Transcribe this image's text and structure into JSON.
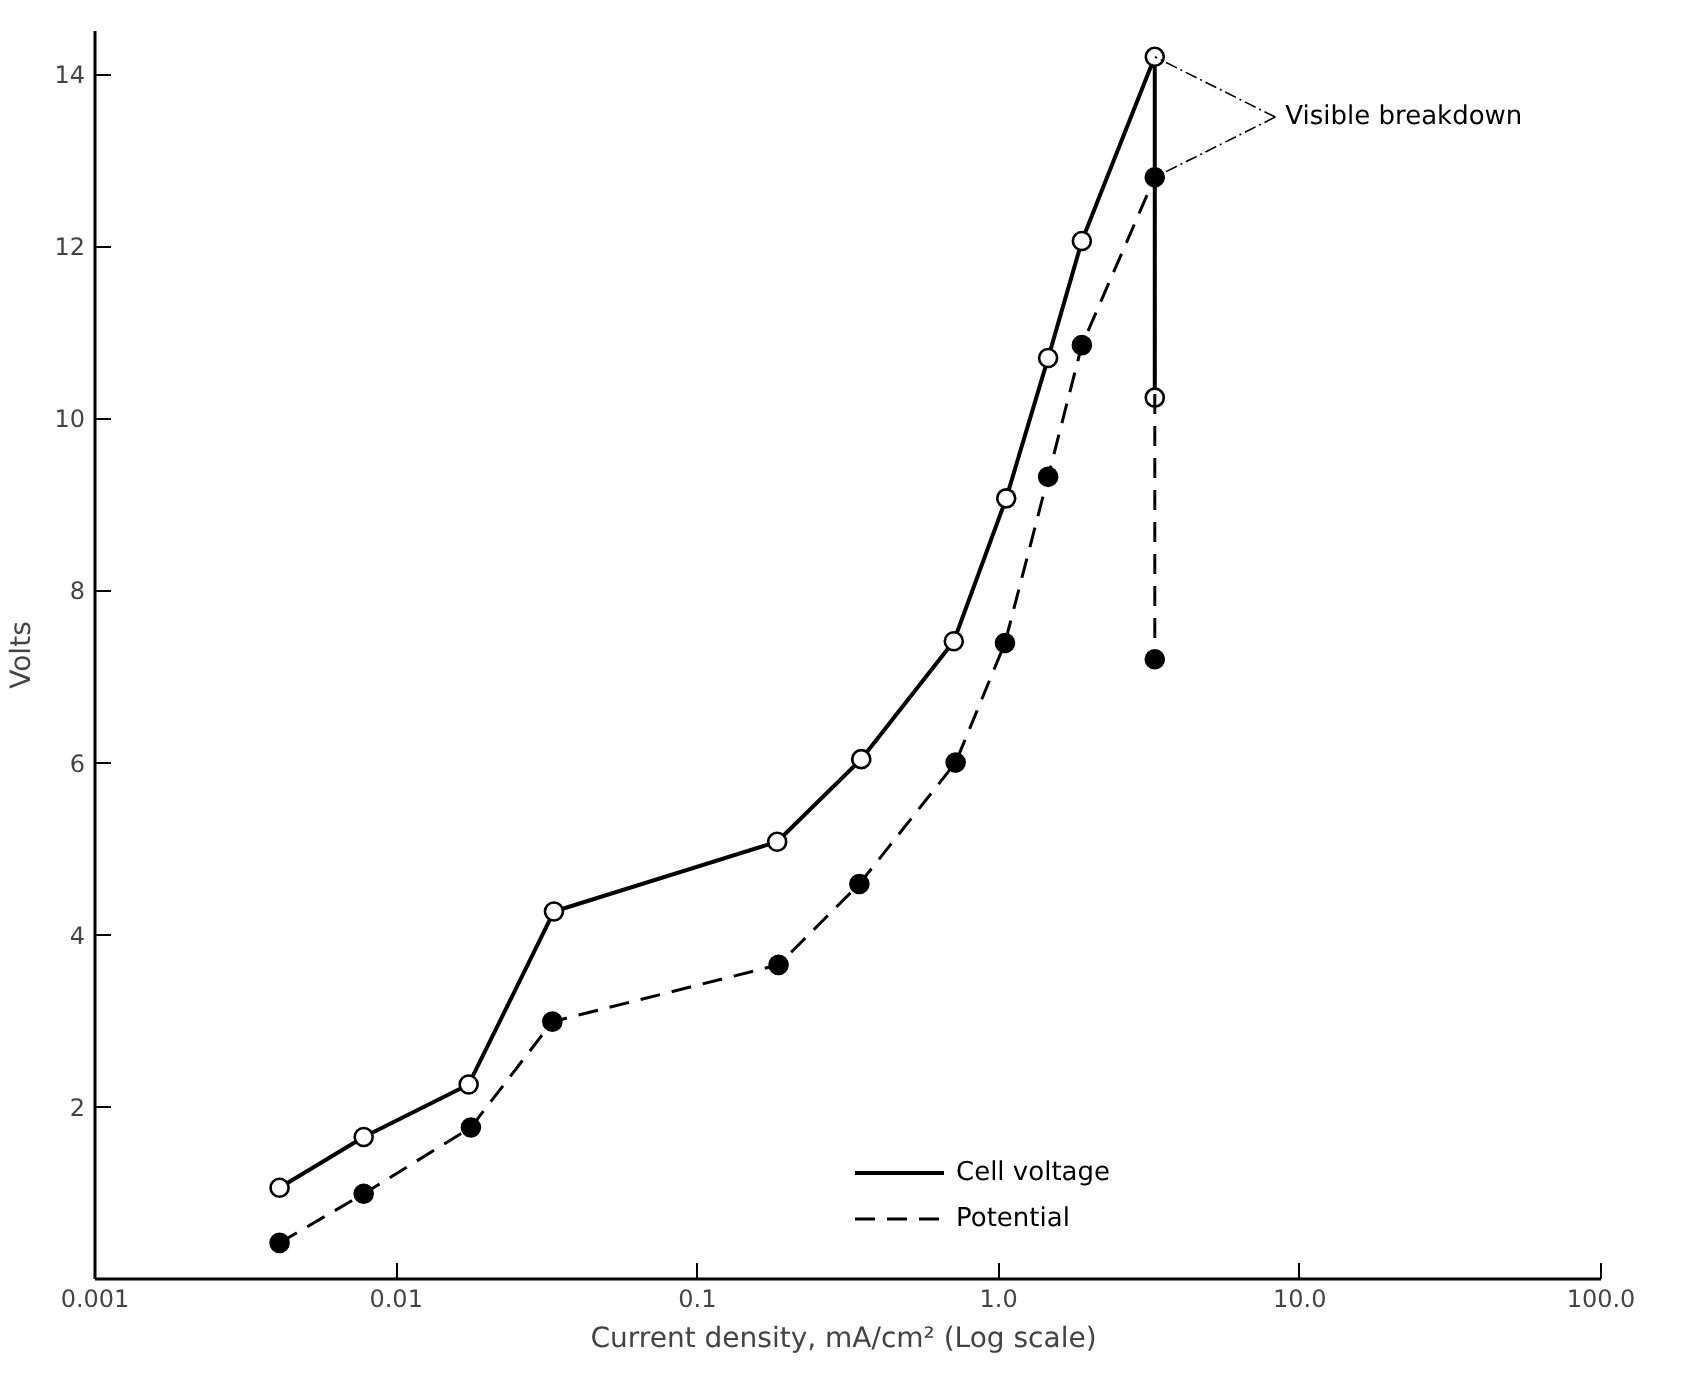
{
  "chart_data": {
    "type": "line",
    "xlabel": "Current density,  mA/cm² (Log scale)",
    "ylabel": "Volts",
    "log": "x",
    "xlim": [
      0.001,
      100
    ],
    "xticks": [
      0.001,
      0.01,
      0.1,
      {
        "value": 1,
        "label": "1.0"
      },
      {
        "value": 10,
        "label": "10.0"
      },
      {
        "value": 100,
        "label": "100.0"
      }
    ],
    "ylim": [
      0,
      14.5
    ],
    "yticks": [
      2,
      4,
      6,
      8,
      10,
      12,
      14
    ],
    "grid": false,
    "legend": "bottom",
    "series": [
      {
        "name": "Cell voltage",
        "color": "#000000",
        "line_style": "solid",
        "marker": "circle",
        "x": [
          0.0041,
          0.0078,
          0.0174,
          0.0334,
          0.184,
          0.35,
          0.71,
          1.06,
          1.46,
          1.89,
          3.3,
          3.3
        ],
        "values": [
          1.06,
          1.65,
          2.26,
          4.27,
          5.08,
          6.04,
          7.41,
          9.07,
          10.7,
          12.06,
          14.2,
          10.24
        ]
      },
      {
        "name": "Potential",
        "color": "#000000",
        "line_style": "dashed",
        "marker": "circle",
        "x": [
          0.0041,
          0.0078,
          0.0177,
          0.033,
          0.186,
          0.345,
          0.72,
          1.05,
          1.46,
          1.89,
          3.3,
          3.3
        ],
        "values": [
          0.42,
          0.99,
          1.76,
          2.99,
          3.65,
          4.59,
          6.0,
          7.39,
          9.32,
          10.85,
          12.8,
          7.2
        ]
      }
    ],
    "annotations": [
      {
        "text": "Visible breakdown",
        "x": 3.3,
        "y": 14.2
      }
    ]
  }
}
